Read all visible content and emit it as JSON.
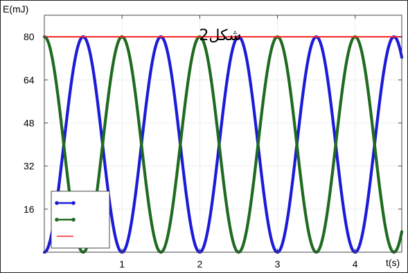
{
  "chart_data": {
    "type": "line",
    "title": "شكل2",
    "xlabel": "t(s)",
    "ylabel": "E(mJ)",
    "xlim": [
      0,
      4.6
    ],
    "ylim": [
      0,
      88
    ],
    "x_ticks": [
      1,
      2,
      3,
      4
    ],
    "y_ticks": [
      16,
      32,
      48,
      64,
      80
    ],
    "grid": true,
    "legend": {
      "placement": "bottom-left"
    },
    "series": [
      {
        "color": "#1b1bd8",
        "marker": "dot",
        "formula": "80*sin^2(pi*t/1.0)",
        "period": 1.0,
        "amplitude": 80,
        "phase": "starts-at-0"
      },
      {
        "color": "#1f6b1f",
        "marker": "dot",
        "formula": "80*cos^2(pi*t/1.0)",
        "period": 1.0,
        "amplitude": 80,
        "phase": "starts-at-80"
      },
      {
        "color": "#ff2020",
        "marker": "none",
        "constant": 80
      }
    ]
  }
}
